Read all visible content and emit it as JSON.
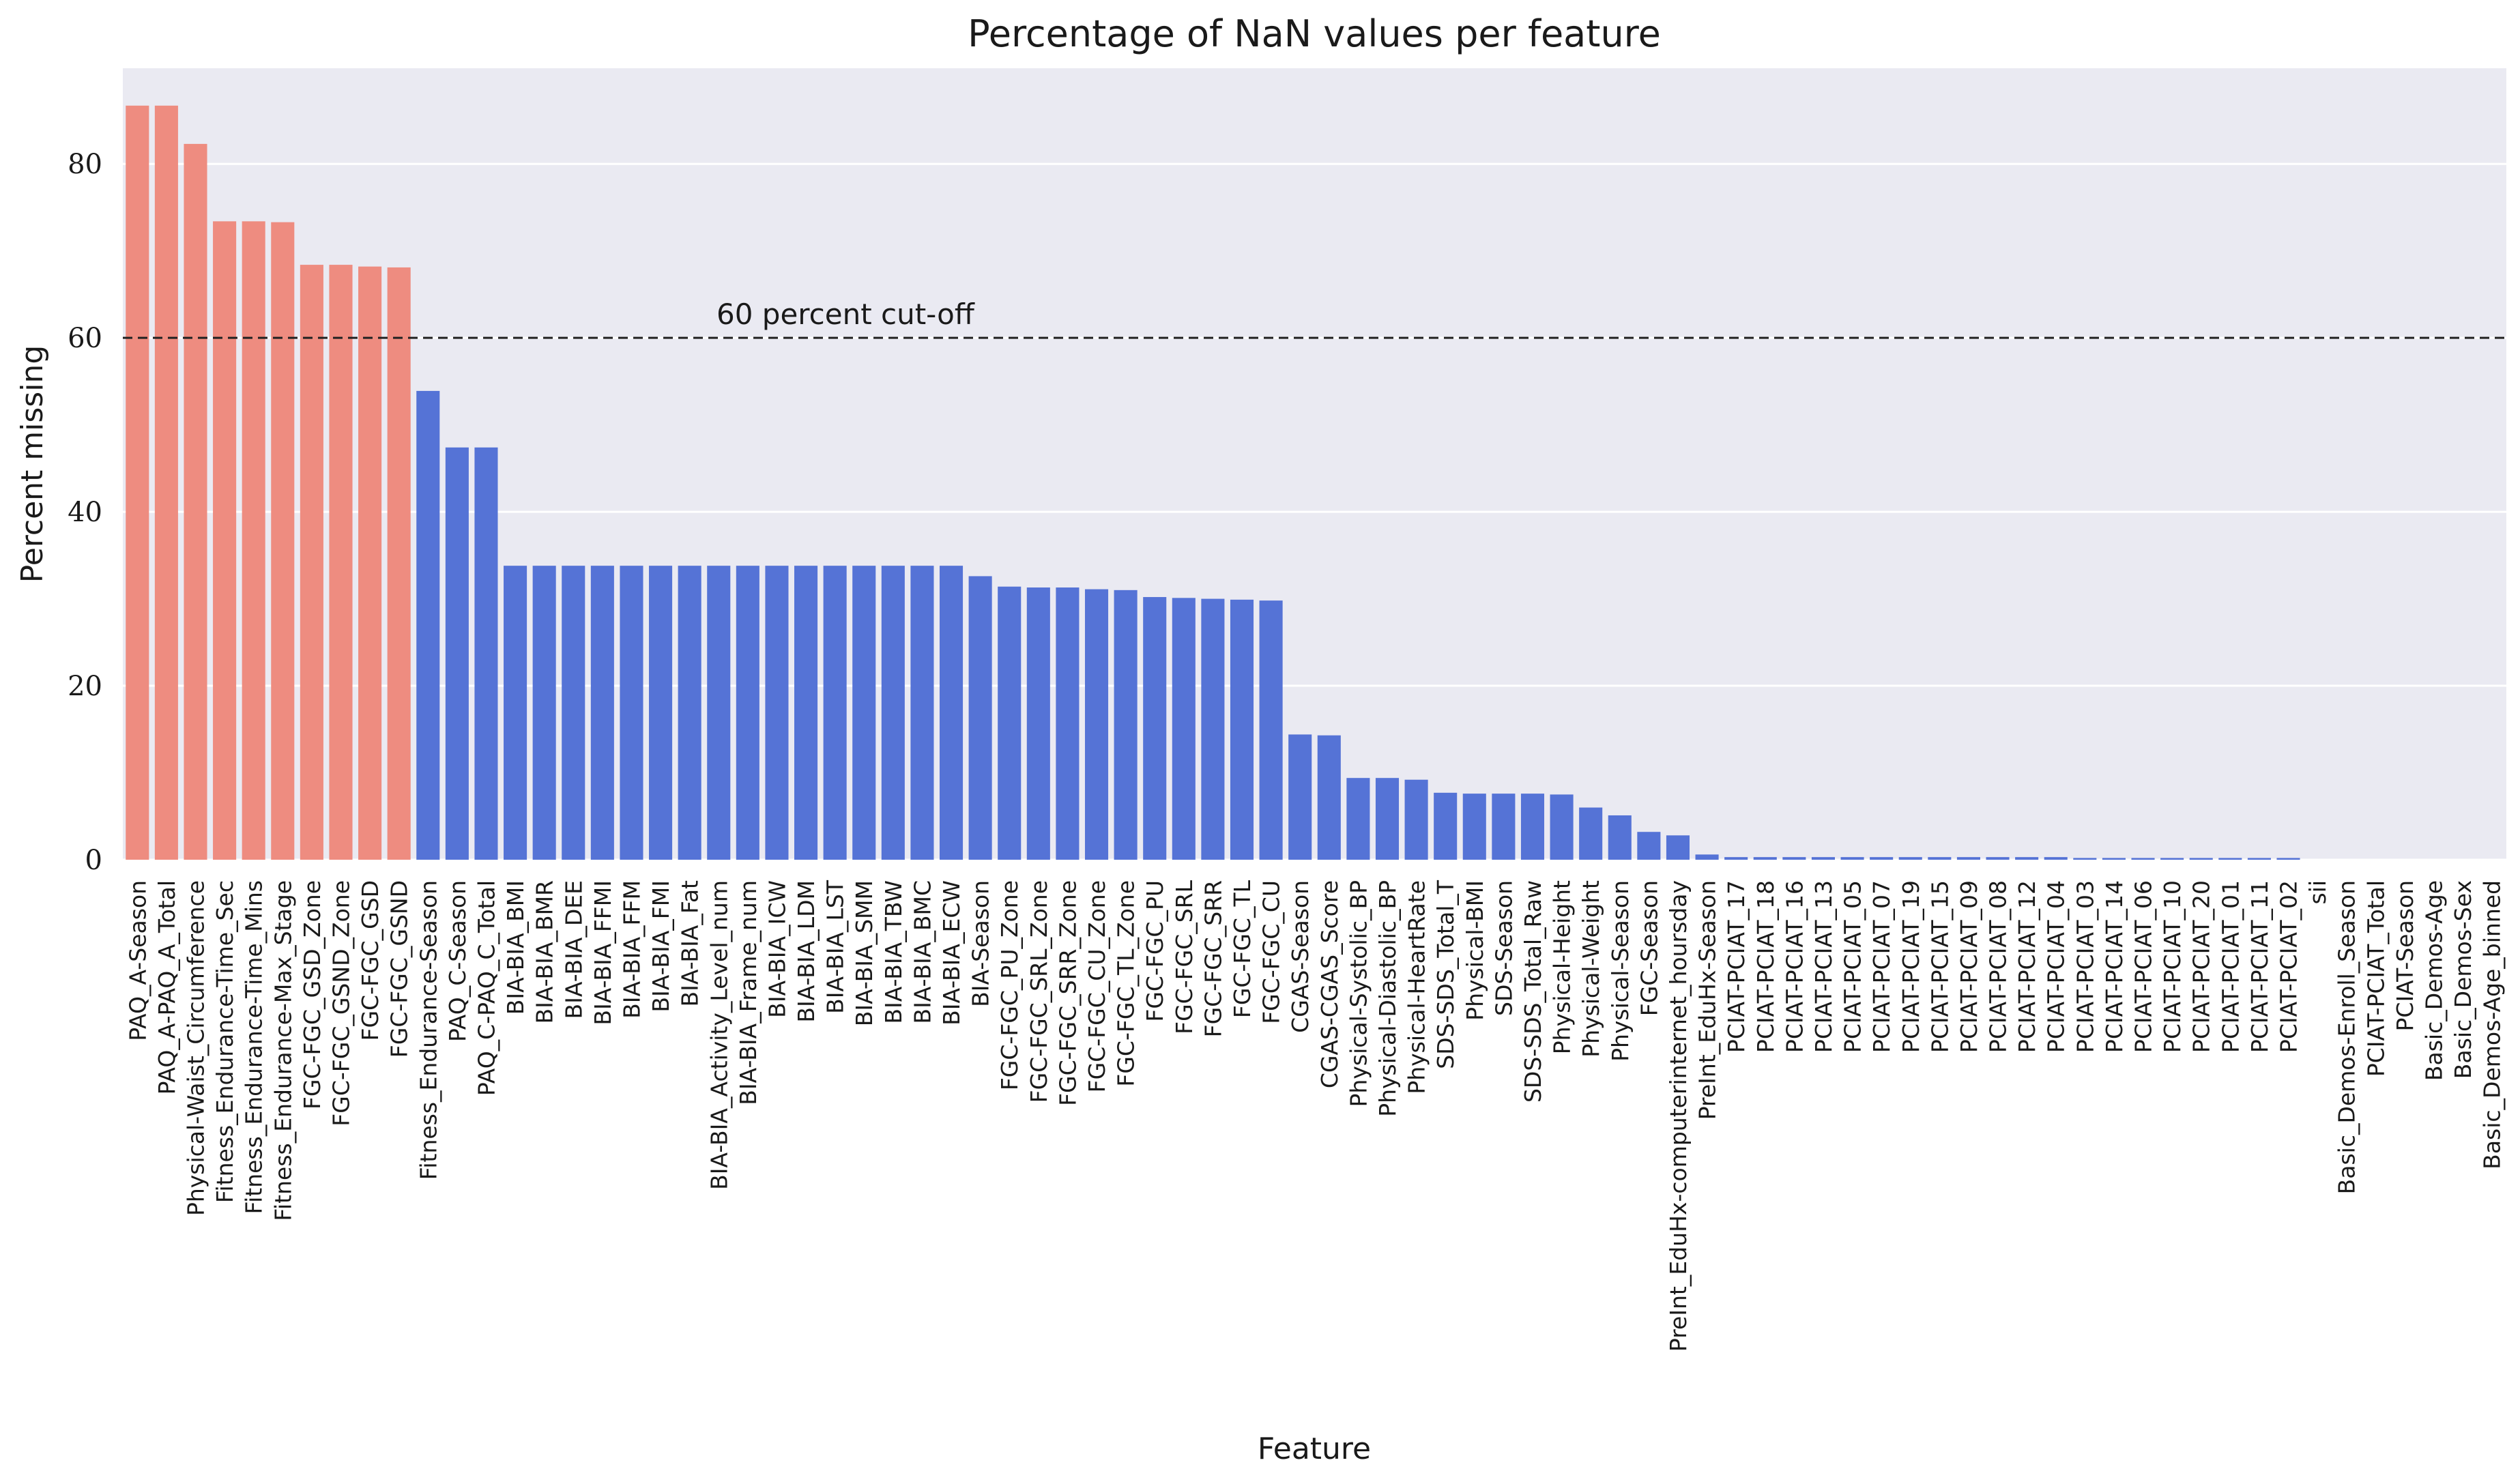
{
  "chart_data": {
    "type": "bar",
    "title": "Percentage of NaN values per feature",
    "xlabel": "Feature",
    "ylabel": "Percent missing",
    "ylim": [
      0,
      91
    ],
    "yticks": [
      0,
      20,
      40,
      60,
      80
    ],
    "grid": true,
    "threshold": {
      "value": 60,
      "label": "60 percent cut-off"
    },
    "colors": {
      "above": "#ee8c80",
      "below": "#5573d6",
      "background": "#eaeaf2",
      "grid": "#ffffff",
      "threshold": "#222222"
    },
    "categories": [
      "PAQ_A-Season",
      "PAQ_A-PAQ_A_Total",
      "Physical-Waist_Circumference",
      "Fitness_Endurance-Time_Sec",
      "Fitness_Endurance-Time_Mins",
      "Fitness_Endurance-Max_Stage",
      "FGC-FGC_GSD_Zone",
      "FGC-FGC_GSND_Zone",
      "FGC-FGC_GSD",
      "FGC-FGC_GSND",
      "Fitness_Endurance-Season",
      "PAQ_C-Season",
      "PAQ_C-PAQ_C_Total",
      "BIA-BIA_BMI",
      "BIA-BIA_BMR",
      "BIA-BIA_DEE",
      "BIA-BIA_FFMI",
      "BIA-BIA_FFM",
      "BIA-BIA_FMI",
      "BIA-BIA_Fat",
      "BIA-BIA_Activity_Level_num",
      "BIA-BIA_Frame_num",
      "BIA-BIA_ICW",
      "BIA-BIA_LDM",
      "BIA-BIA_LST",
      "BIA-BIA_SMM",
      "BIA-BIA_TBW",
      "BIA-BIA_BMC",
      "BIA-BIA_ECW",
      "BIA-Season",
      "FGC-FGC_PU_Zone",
      "FGC-FGC_SRL_Zone",
      "FGC-FGC_SRR_Zone",
      "FGC-FGC_CU_Zone",
      "FGC-FGC_TL_Zone",
      "FGC-FGC_PU",
      "FGC-FGC_SRL",
      "FGC-FGC_SRR",
      "FGC-FGC_TL",
      "FGC-FGC_CU",
      "CGAS-Season",
      "CGAS-CGAS_Score",
      "Physical-Systolic_BP",
      "Physical-Diastolic_BP",
      "Physical-HeartRate",
      "SDS-SDS_Total_T",
      "Physical-BMI",
      "SDS-Season",
      "SDS-SDS_Total_Raw",
      "Physical-Height",
      "Physical-Weight",
      "Physical-Season",
      "FGC-Season",
      "PreInt_EduHx-computerinternet_hoursday",
      "PreInt_EduHx-Season",
      "PCIAT-PCIAT_17",
      "PCIAT-PCIAT_18",
      "PCIAT-PCIAT_16",
      "PCIAT-PCIAT_13",
      "PCIAT-PCIAT_05",
      "PCIAT-PCIAT_07",
      "PCIAT-PCIAT_19",
      "PCIAT-PCIAT_15",
      "PCIAT-PCIAT_09",
      "PCIAT-PCIAT_08",
      "PCIAT-PCIAT_12",
      "PCIAT-PCIAT_04",
      "PCIAT-PCIAT_03",
      "PCIAT-PCIAT_14",
      "PCIAT-PCIAT_06",
      "PCIAT-PCIAT_10",
      "PCIAT-PCIAT_20",
      "PCIAT-PCIAT_01",
      "PCIAT-PCIAT_11",
      "PCIAT-PCIAT_02",
      "sii",
      "Basic_Demos-Enroll_Season",
      "PCIAT-PCIAT_Total",
      "PCIAT-Season",
      "Basic_Demos-Age",
      "Basic_Demos-Sex",
      "Basic_Demos-Age_binned"
    ],
    "values": [
      86.7,
      86.7,
      82.3,
      73.4,
      73.4,
      73.3,
      68.4,
      68.4,
      68.2,
      68.1,
      53.9,
      47.4,
      47.4,
      33.8,
      33.8,
      33.8,
      33.8,
      33.8,
      33.8,
      33.8,
      33.8,
      33.8,
      33.8,
      33.8,
      33.8,
      33.8,
      33.8,
      33.8,
      33.8,
      32.6,
      31.4,
      31.3,
      31.3,
      31.1,
      31.0,
      30.2,
      30.1,
      30.0,
      29.9,
      29.8,
      14.4,
      14.3,
      9.4,
      9.4,
      9.2,
      7.7,
      7.6,
      7.6,
      7.6,
      7.5,
      6.0,
      5.1,
      3.2,
      2.8,
      0.6,
      0.3,
      0.3,
      0.3,
      0.3,
      0.3,
      0.3,
      0.3,
      0.3,
      0.3,
      0.3,
      0.3,
      0.3,
      0.2,
      0.2,
      0.2,
      0.2,
      0.2,
      0.2,
      0.2,
      0.2,
      0.0,
      0.0,
      0.0,
      0.0,
      0.0,
      0.0,
      0.0
    ]
  }
}
